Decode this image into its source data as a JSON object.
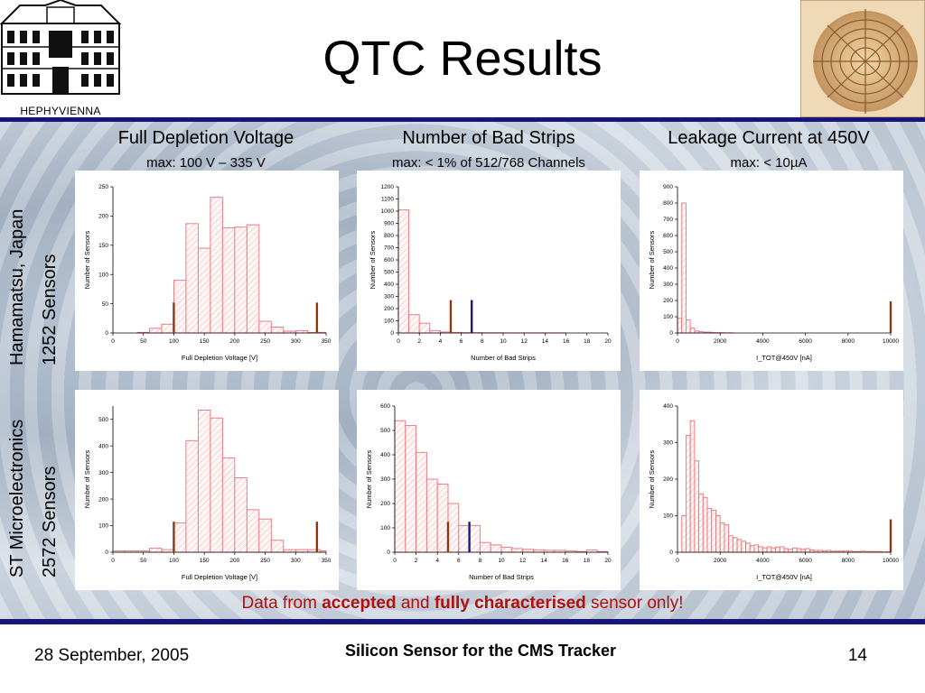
{
  "header": {
    "title": "QTC Results",
    "logo_text": "HEPHYVIENNA"
  },
  "columns": [
    {
      "title": "Full Depletion Voltage",
      "subtitle": "max: 100 V – 335 V"
    },
    {
      "title": "Number of Bad Strips",
      "subtitle": "max: < 1% of 512/768 Channels"
    },
    {
      "title": "Leakage Current at 450V",
      "subtitle": "max: < 10µA"
    }
  ],
  "rows": [
    {
      "line1": "Hamamatsu, Japan",
      "line2": "1252 Sensors"
    },
    {
      "line1": "ST Microelectronics",
      "line2": "2572 Sensors"
    }
  ],
  "note": {
    "prefix": "Data from ",
    "accepted": "accepted",
    "middle": " and ",
    "characterised": "fully characterised",
    "suffix": " sensor only!"
  },
  "footer": {
    "date": "28 September, 2005",
    "title": "Silicon Sensor for the CMS Tracker",
    "page": "14"
  },
  "colors": {
    "bars": "#e8737a",
    "limit_brown": "#8b3a0e",
    "limit_navy": "#1a1a80",
    "accent": "#16167a",
    "note": "#b01010"
  },
  "chart_data": [
    {
      "id": "hpk-fdv",
      "type": "bar",
      "xlabel": "Full Depletion Voltage [V]",
      "ylabel": "Number of Sensors",
      "xlim": [
        0,
        350
      ],
      "ylim": [
        0,
        250
      ],
      "xticks": [
        0,
        50,
        100,
        150,
        200,
        250,
        300,
        350
      ],
      "yticks": [
        0,
        50,
        100,
        150,
        200,
        250
      ],
      "bin_edges": [
        0,
        20,
        40,
        60,
        80,
        100,
        120,
        140,
        160,
        180,
        200,
        220,
        240,
        260,
        280,
        300,
        320,
        340,
        360
      ],
      "values": [
        0,
        0,
        1,
        8,
        15,
        90,
        187,
        145,
        232,
        180,
        181,
        185,
        20,
        10,
        3,
        4,
        1,
        1
      ],
      "limits": [
        {
          "x": 100,
          "height": 52,
          "color": "brown"
        },
        {
          "x": 335,
          "height": 52,
          "color": "brown"
        }
      ]
    },
    {
      "id": "hpk-bad",
      "type": "bar",
      "xlabel": "Number of Bad Strips",
      "ylabel": "Number of Sensors",
      "xlim": [
        0,
        20
      ],
      "ylim": [
        0,
        1200
      ],
      "xticks": [
        0,
        2,
        4,
        6,
        8,
        10,
        12,
        14,
        16,
        18,
        20
      ],
      "yticks": [
        0,
        100,
        200,
        300,
        400,
        500,
        600,
        700,
        800,
        900,
        1000,
        1100,
        1200
      ],
      "bin_edges": [
        0,
        1,
        2,
        3,
        4,
        5,
        6,
        7,
        8,
        9,
        10,
        11,
        12,
        13,
        14,
        15,
        16,
        17,
        18,
        19,
        20
      ],
      "values": [
        1010,
        150,
        80,
        20,
        8,
        5,
        3,
        3,
        2,
        2,
        1,
        1,
        1,
        1,
        1,
        1,
        0,
        0,
        0,
        0
      ],
      "limits": [
        {
          "x": 5,
          "height": 270,
          "color": "brown"
        },
        {
          "x": 7,
          "height": 270,
          "color": "navy"
        }
      ]
    },
    {
      "id": "hpk-leak",
      "type": "bar",
      "xlabel": "I_TOT@450V [nA]",
      "ylabel": "Number of Sensors",
      "xlim": [
        0,
        10000
      ],
      "ylim": [
        0,
        900
      ],
      "xticks": [
        0,
        2000,
        4000,
        6000,
        8000,
        10000
      ],
      "yticks": [
        0,
        100,
        200,
        300,
        400,
        500,
        600,
        700,
        800,
        900
      ],
      "bin_edges": [
        0,
        200,
        400,
        600,
        800,
        1000,
        1200,
        1400,
        1600,
        1800,
        2000,
        2200,
        2400,
        2600
      ],
      "values": [
        90,
        800,
        80,
        30,
        12,
        8,
        5,
        5,
        3,
        2,
        2,
        1,
        1
      ],
      "limits": [
        {
          "x": 10000,
          "height": 195,
          "color": "brown"
        }
      ]
    },
    {
      "id": "st-fdv",
      "type": "bar",
      "xlabel": "Full Depletion Voltage [V]",
      "ylabel": "Number of Sensors",
      "xlim": [
        0,
        350
      ],
      "ylim": [
        0,
        550
      ],
      "xticks": [
        0,
        50,
        100,
        150,
        200,
        250,
        300,
        350
      ],
      "yticks": [
        0,
        100,
        200,
        300,
        400,
        500
      ],
      "bin_edges": [
        0,
        20,
        40,
        60,
        80,
        100,
        120,
        140,
        160,
        180,
        200,
        220,
        240,
        260,
        280,
        300,
        320,
        340,
        360
      ],
      "values": [
        5,
        5,
        5,
        15,
        10,
        110,
        420,
        535,
        505,
        355,
        280,
        160,
        125,
        45,
        10,
        10,
        10,
        5
      ],
      "limits": [
        {
          "x": 100,
          "height": 115,
          "color": "brown"
        },
        {
          "x": 335,
          "height": 115,
          "color": "brown"
        }
      ]
    },
    {
      "id": "st-bad",
      "type": "bar",
      "xlabel": "Number of Bad Strips",
      "ylabel": "Number of Sensors",
      "xlim": [
        0,
        20
      ],
      "ylim": [
        0,
        600
      ],
      "xticks": [
        0,
        2,
        4,
        6,
        8,
        10,
        12,
        14,
        16,
        18,
        20
      ],
      "yticks": [
        0,
        100,
        200,
        300,
        400,
        500,
        600
      ],
      "bin_edges": [
        0,
        1,
        2,
        3,
        4,
        5,
        6,
        7,
        8,
        9,
        10,
        11,
        12,
        13,
        14,
        15,
        16,
        17,
        18,
        19,
        20
      ],
      "values": [
        540,
        520,
        410,
        300,
        280,
        200,
        110,
        110,
        40,
        30,
        20,
        15,
        12,
        10,
        8,
        8,
        5,
        3,
        10,
        3
      ],
      "limits": [
        {
          "x": 5,
          "height": 125,
          "color": "brown"
        },
        {
          "x": 7,
          "height": 125,
          "color": "navy"
        }
      ]
    },
    {
      "id": "st-leak",
      "type": "bar",
      "xlabel": "I_TOT@450V [nA]",
      "ylabel": "Number of Sensors",
      "xlim": [
        0,
        10000
      ],
      "ylim": [
        0,
        400
      ],
      "xticks": [
        0,
        2000,
        4000,
        6000,
        8000,
        10000
      ],
      "yticks": [
        0,
        100,
        200,
        300,
        400
      ],
      "bin_edges": [
        0,
        200,
        400,
        600,
        800,
        1000,
        1200,
        1400,
        1600,
        1800,
        2000,
        2200,
        2400,
        2600,
        2800,
        3000,
        3200,
        3400,
        3600,
        3800,
        4000,
        4200,
        4400,
        4600,
        4800,
        5000,
        5200,
        5400,
        5600,
        5800,
        6000,
        6200,
        6400,
        6600,
        6800,
        7000,
        7200,
        7400,
        7600,
        7800,
        8000,
        8200,
        8400,
        8600,
        8800,
        9000,
        9200,
        9400,
        9600,
        9800,
        10000
      ],
      "values": [
        0,
        100,
        320,
        360,
        250,
        160,
        150,
        120,
        115,
        100,
        80,
        75,
        45,
        40,
        35,
        30,
        25,
        18,
        20,
        15,
        12,
        15,
        12,
        14,
        15,
        10,
        8,
        12,
        10,
        8,
        10,
        6,
        5,
        5,
        4,
        5,
        3,
        3,
        3,
        4,
        3,
        2,
        2,
        3,
        2,
        2,
        2,
        2,
        1,
        1
      ],
      "limits": [
        {
          "x": 10000,
          "height": 90,
          "color": "brown"
        }
      ]
    }
  ]
}
